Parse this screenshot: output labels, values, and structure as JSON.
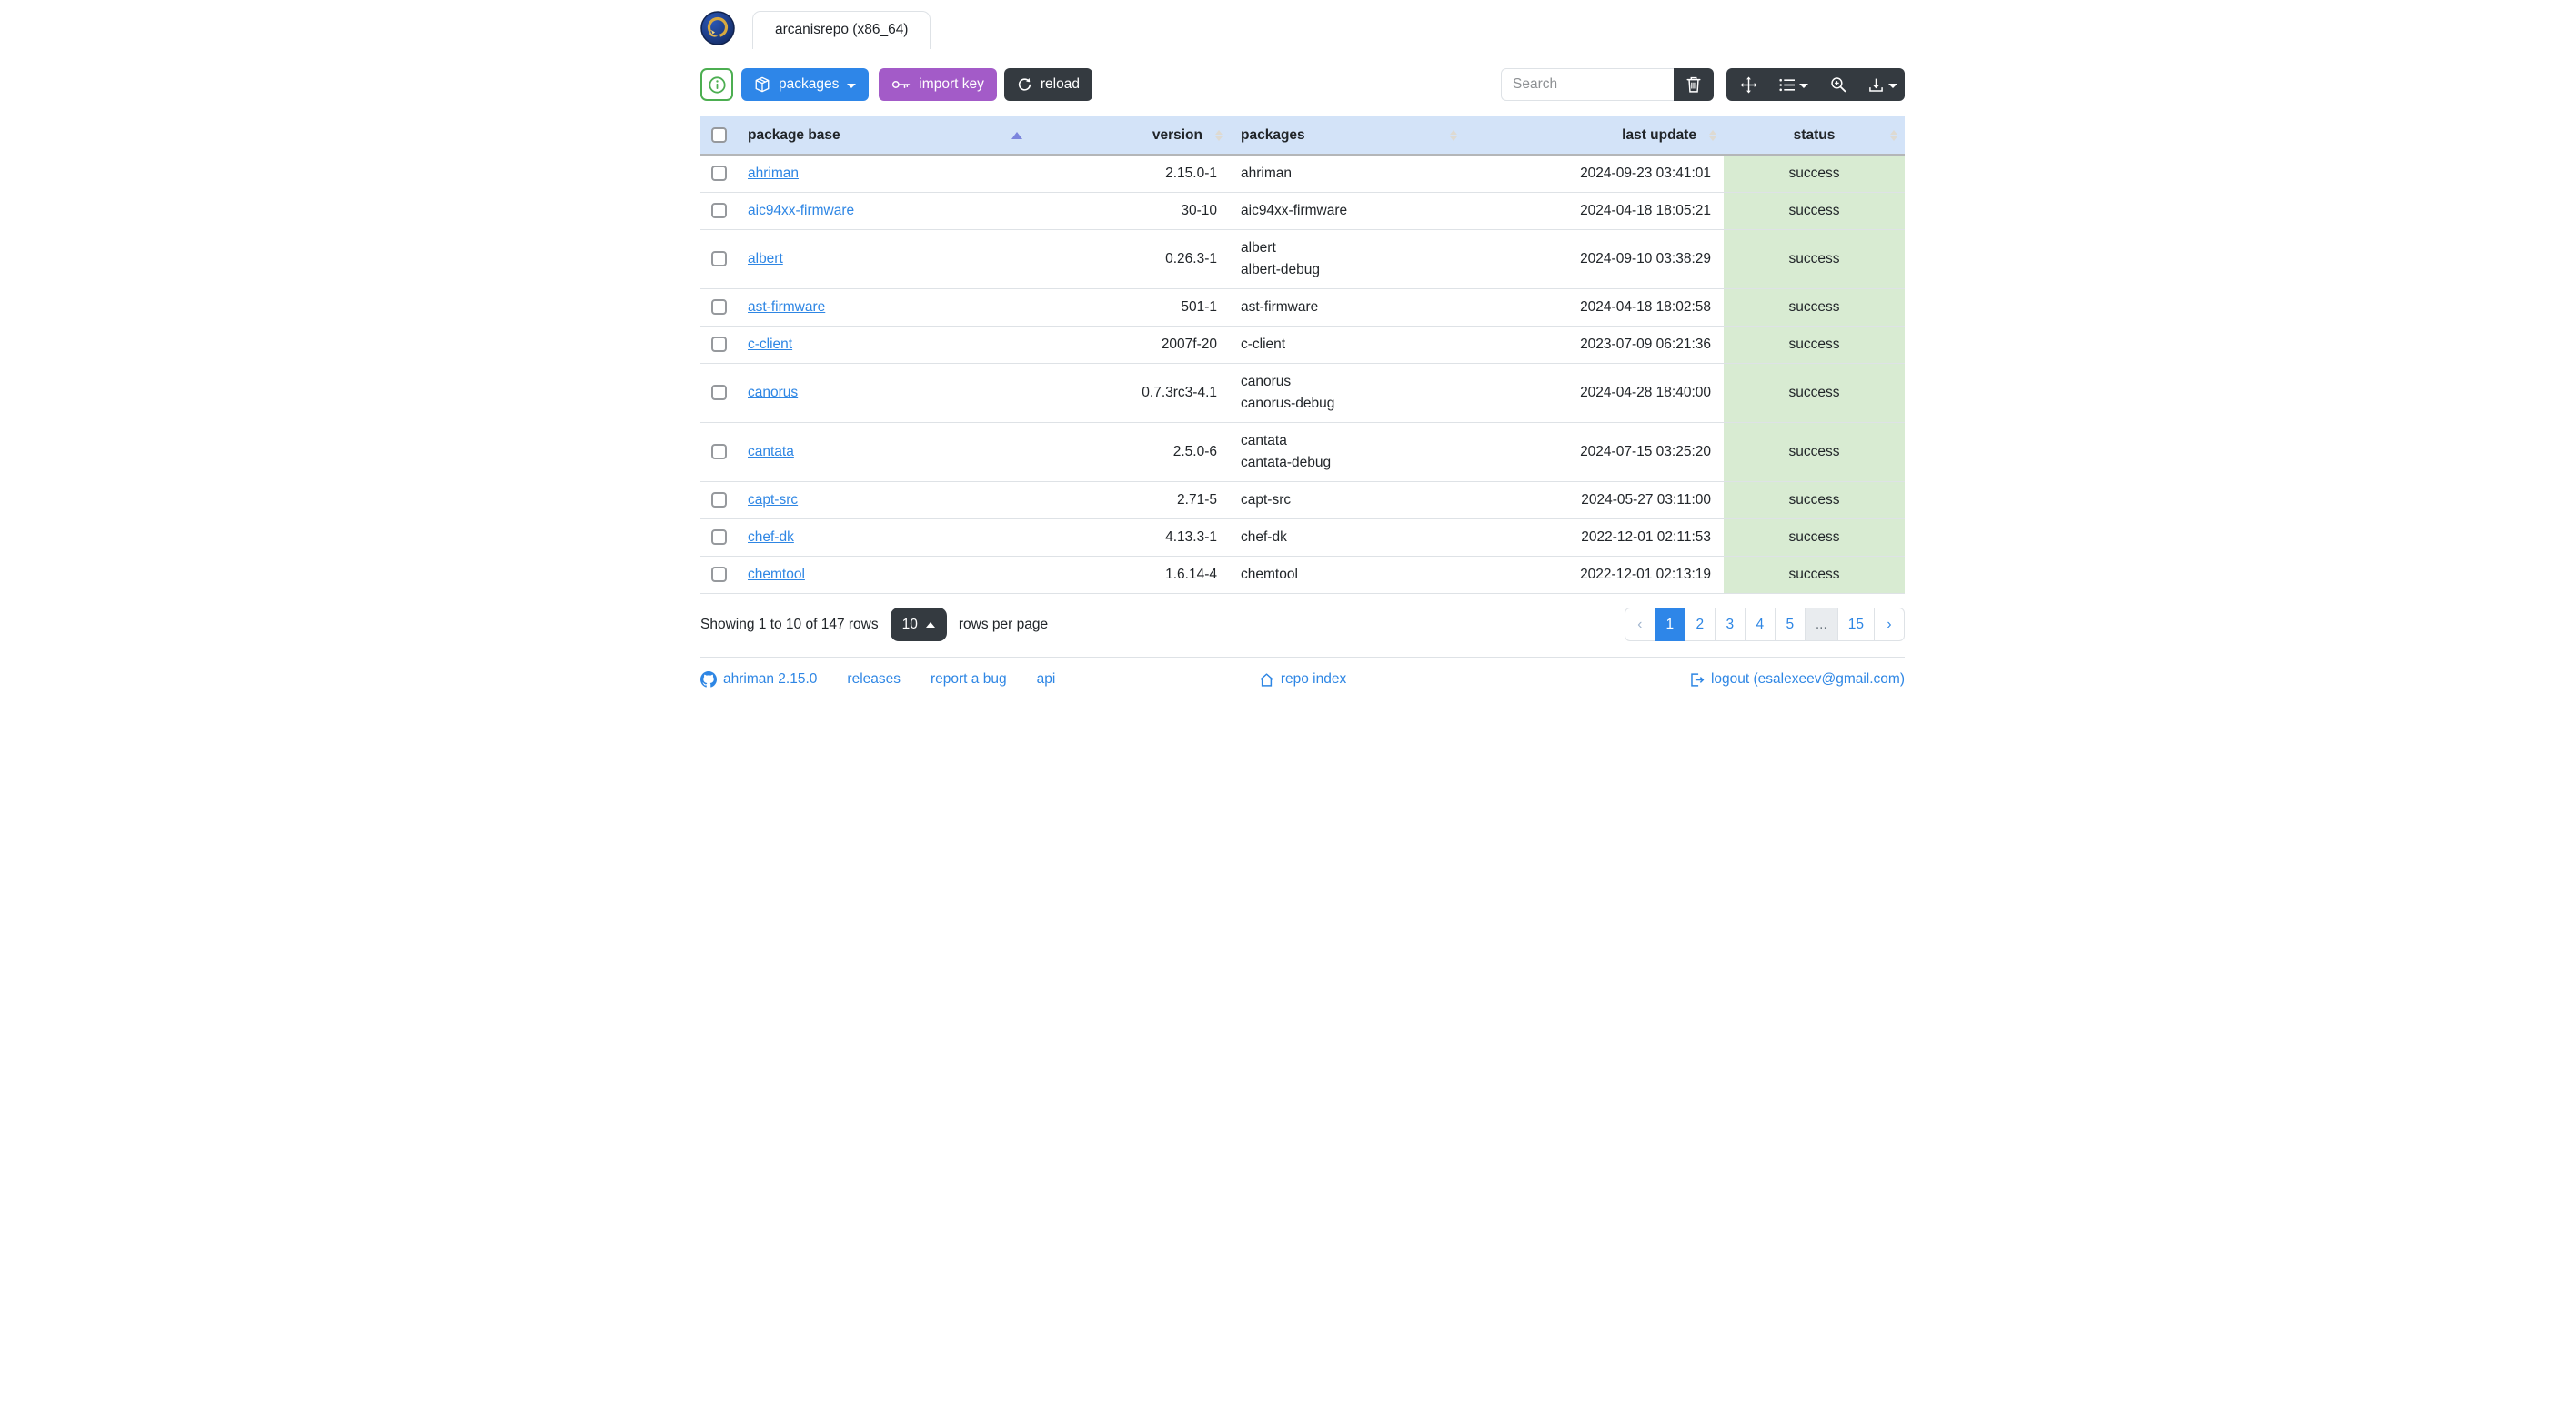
{
  "theme": {
    "blue": "#2e86e8",
    "purple": "#a35bc8",
    "dark": "#343a40",
    "green": "#4cae51",
    "link": "#2e86e4",
    "header-bg": "#d3e3f8",
    "success-bg": "#d8ebd2"
  },
  "window": {
    "tab_title": "arcanisrepo (x86_64)"
  },
  "toolbar": {
    "packages_label": "packages",
    "import_key_label": "import key",
    "reload_label": "reload",
    "search_placeholder": "Search"
  },
  "table": {
    "columns": [
      {
        "label": "package base",
        "sort": "asc"
      },
      {
        "label": "version",
        "sort": "both"
      },
      {
        "label": "packages",
        "sort": "both"
      },
      {
        "label": "last update",
        "sort": "both"
      },
      {
        "label": "status",
        "sort": "both"
      }
    ],
    "rows": [
      {
        "package_base": "ahriman",
        "version": "2.15.0-1",
        "packages": [
          "ahriman"
        ],
        "last_update": "2024-09-23 03:41:01",
        "status": "success"
      },
      {
        "package_base": "aic94xx-firmware",
        "version": "30-10",
        "packages": [
          "aic94xx-firmware"
        ],
        "last_update": "2024-04-18 18:05:21",
        "status": "success"
      },
      {
        "package_base": "albert",
        "version": "0.26.3-1",
        "packages": [
          "albert",
          "albert-debug"
        ],
        "last_update": "2024-09-10 03:38:29",
        "status": "success"
      },
      {
        "package_base": "ast-firmware",
        "version": "501-1",
        "packages": [
          "ast-firmware"
        ],
        "last_update": "2024-04-18 18:02:58",
        "status": "success"
      },
      {
        "package_base": "c-client",
        "version": "2007f-20",
        "packages": [
          "c-client"
        ],
        "last_update": "2023-07-09 06:21:36",
        "status": "success"
      },
      {
        "package_base": "canorus",
        "version": "0.7.3rc3-4.1",
        "packages": [
          "canorus",
          "canorus-debug"
        ],
        "last_update": "2024-04-28 18:40:00",
        "status": "success"
      },
      {
        "package_base": "cantata",
        "version": "2.5.0-6",
        "packages": [
          "cantata",
          "cantata-debug"
        ],
        "last_update": "2024-07-15 03:25:20",
        "status": "success"
      },
      {
        "package_base": "capt-src",
        "version": "2.71-5",
        "packages": [
          "capt-src"
        ],
        "last_update": "2024-05-27 03:11:00",
        "status": "success"
      },
      {
        "package_base": "chef-dk",
        "version": "4.13.3-1",
        "packages": [
          "chef-dk"
        ],
        "last_update": "2022-12-01 02:11:53",
        "status": "success"
      },
      {
        "package_base": "chemtool",
        "version": "1.6.14-4",
        "packages": [
          "chemtool"
        ],
        "last_update": "2022-12-01 02:13:19",
        "status": "success"
      }
    ]
  },
  "footer": {
    "showing_text": "Showing 1 to 10 of 147 rows",
    "page_size": "10",
    "rows_per_page_label": "rows per page"
  },
  "pagination": [
    {
      "label": "‹",
      "type": "prev"
    },
    {
      "label": "1",
      "type": "page",
      "active": true
    },
    {
      "label": "2",
      "type": "page"
    },
    {
      "label": "3",
      "type": "page"
    },
    {
      "label": "4",
      "type": "page"
    },
    {
      "label": "5",
      "type": "page"
    },
    {
      "label": "...",
      "type": "ellipsis"
    },
    {
      "label": "15",
      "type": "page"
    },
    {
      "label": "›",
      "type": "next"
    }
  ],
  "links": {
    "version": "ahriman 2.15.0",
    "releases": "releases",
    "report_bug": "report a bug",
    "api": "api",
    "repo_index": "repo index",
    "logout": "logout (esalexeev@gmail.com)"
  }
}
